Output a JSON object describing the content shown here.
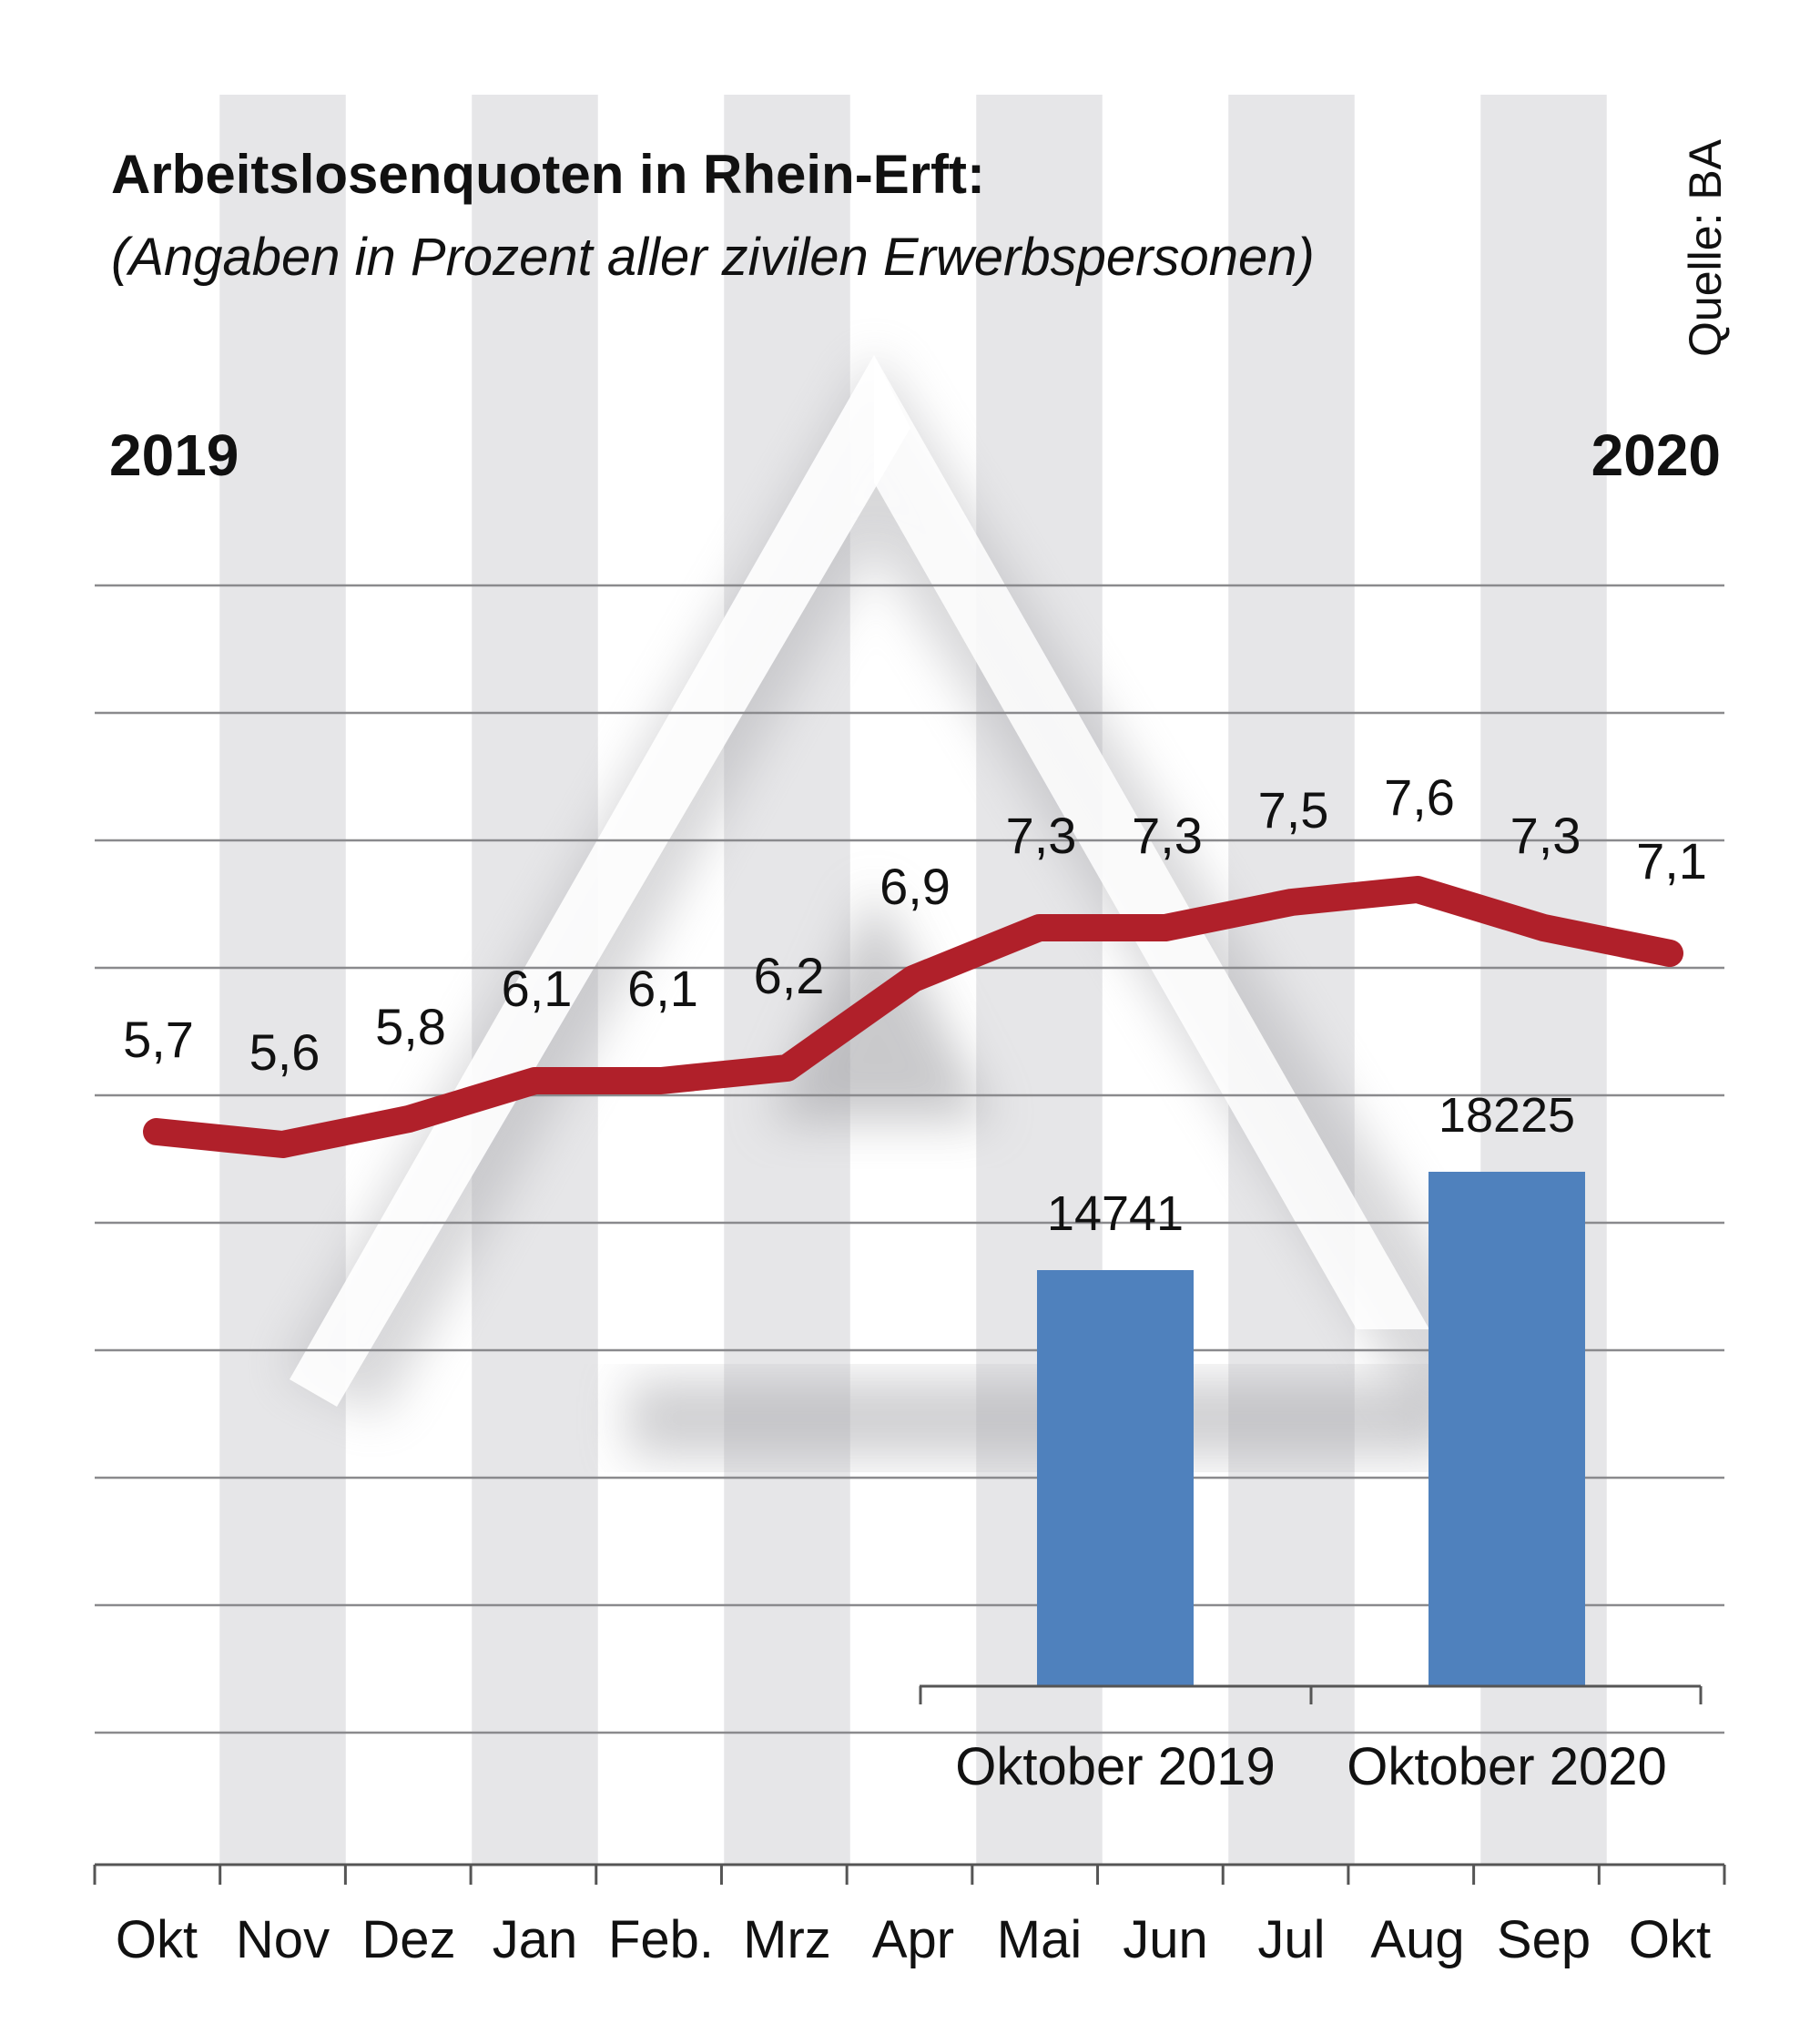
{
  "chart_data": [
    {
      "type": "line",
      "title": "Arbeitslosenquoten in Rhein-Erft:",
      "subtitle": "(Angaben in Prozent aller zivilen Erwerbspersonen)",
      "source": "Quelle: BA",
      "year_start": "2019",
      "year_end": "2020",
      "categories": [
        "Okt",
        "Nov",
        "Dez",
        "Jan",
        "Feb.",
        "Mrz",
        "Apr",
        "Mai",
        "Jun",
        "Jul",
        "Aug",
        "Sep",
        "Okt"
      ],
      "values": [
        5.7,
        5.6,
        5.8,
        6.1,
        6.1,
        6.2,
        6.9,
        7.3,
        7.3,
        7.5,
        7.6,
        7.3,
        7.1
      ],
      "value_labels": [
        "5,7",
        "5,6",
        "5,8",
        "6,1",
        "6,1",
        "6,2",
        "6,9",
        "7,3",
        "7,3",
        "7,5",
        "7,6",
        "7,3",
        "7,1"
      ],
      "color": "#b0202a",
      "ylim": [
        0,
        10
      ],
      "grid": true,
      "alternating_column_bands": true
    },
    {
      "type": "bar",
      "categories": [
        "Oktober 2019",
        "Oktober 2020"
      ],
      "values": [
        14741,
        18225
      ],
      "value_labels": [
        "14741",
        "18225"
      ],
      "color": "#4f81bd"
    }
  ]
}
